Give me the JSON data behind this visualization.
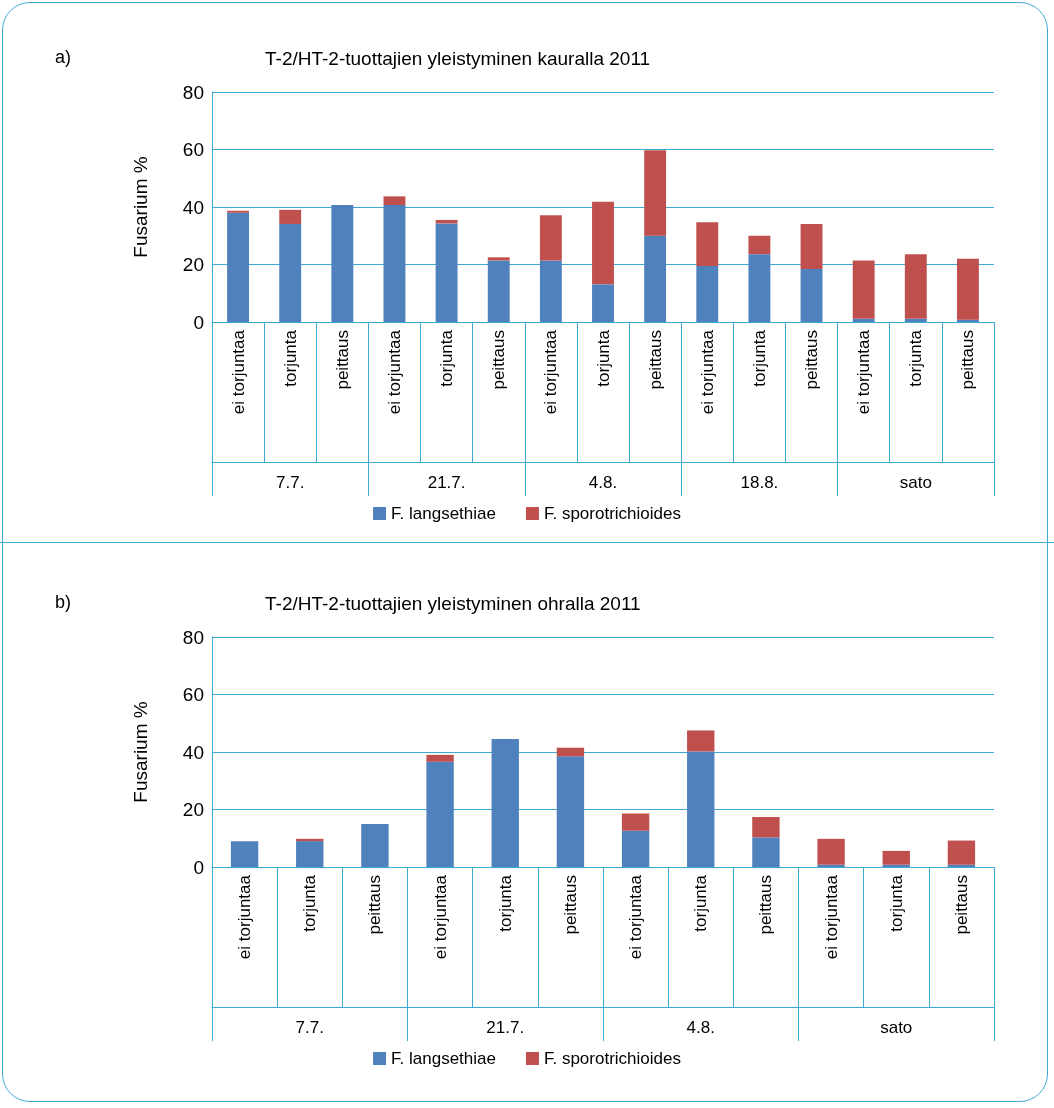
{
  "chart_data": [
    {
      "type": "bar",
      "title": "T-2/HT-2-tuottajien yleistyminen kauralla 2011",
      "ylabel": "Fusarium %",
      "stacked": true,
      "legend": "bottom",
      "grid": "y",
      "categories": [
        "ei torjuntaa",
        "torjunta",
        "peittaus",
        "ei torjuntaa",
        "torjunta",
        "peittaus",
        "ei torjuntaa",
        "torjunta",
        "peittaus",
        "ei torjuntaa",
        "torjunta",
        "peittaus",
        "ei torjuntaa",
        "torjunta",
        "peittaus"
      ],
      "annotations": [
        "a)",
        "7.7.",
        "21.7.",
        "4.8.",
        "18.8.",
        "sato"
      ],
      "ylim": [
        0,
        80
      ],
      "yticks": [
        0,
        20,
        40,
        60,
        80
      ],
      "series": [
        {
          "name": "F. langsethiae",
          "color": "#4f81bd",
          "values": [
            38,
            34.1,
            40.7,
            40.7,
            34.3,
            21.4,
            21.4,
            13.1,
            30,
            19.5,
            23.6,
            18.4,
            1.1,
            1.1,
            0.8
          ]
        },
        {
          "name": "F. sporotrichioides",
          "color": "#c0504d",
          "values": [
            0.7,
            4.9,
            0,
            3,
            1.2,
            1.1,
            15.7,
            28.7,
            29.7,
            15.2,
            6.4,
            15.7,
            20.3,
            22.5,
            21.2
          ]
        }
      ]
    },
    {
      "type": "bar",
      "title": "T-2/HT-2-tuottajien yleistyminen ohralla 2011",
      "ylabel": "Fusarium %",
      "stacked": true,
      "legend": "bottom",
      "grid": "y",
      "categories": [
        "ei torjuntaa",
        "torjunta",
        "peittaus",
        "ei torjuntaa",
        "torjunta",
        "peittaus",
        "ei torjuntaa",
        "torjunta",
        "peittaus",
        "ei torjuntaa",
        "torjunta",
        "peittaus"
      ],
      "annotations": [
        "b)",
        "7.7.",
        "21.7.",
        "4.8.",
        "sato"
      ],
      "ylim": [
        0,
        80
      ],
      "yticks": [
        0,
        20,
        40,
        60,
        80
      ],
      "series": [
        {
          "name": "F. langsethiae",
          "color": "#4f81bd",
          "values": [
            9,
            9,
            15,
            36.6,
            44.5,
            38.5,
            12.6,
            40.2,
            10.3,
            0.8,
            0.8,
            0.8
          ]
        },
        {
          "name": "F. sporotrichioides",
          "color": "#c0504d",
          "values": [
            0,
            0.8,
            0,
            2.4,
            0,
            3,
            6,
            7.3,
            7.1,
            9,
            4.8,
            8.4
          ]
        }
      ]
    }
  ]
}
